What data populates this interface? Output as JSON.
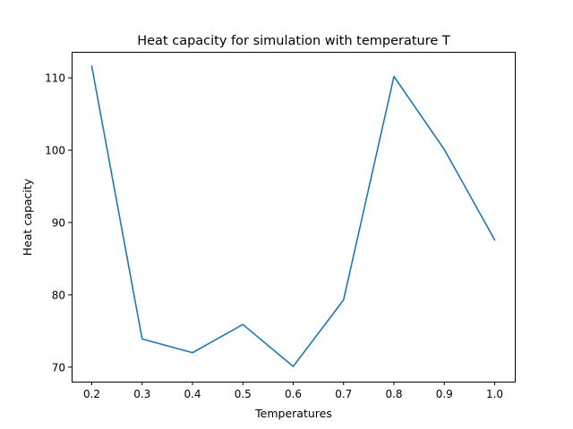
{
  "chart_data": {
    "type": "line",
    "title": "Heat capacity for simulation with temperature T",
    "xlabel": "Temperatures",
    "ylabel": "Heat capacity",
    "x": [
      0.2,
      0.3,
      0.4,
      0.5,
      0.6,
      0.7,
      0.8,
      0.9,
      1.0
    ],
    "series": [
      {
        "color": "#1f77b4",
        "values": [
          111.6,
          73.9,
          72.0,
          75.9,
          70.1,
          79.3,
          110.2,
          100.1,
          87.6
        ]
      }
    ],
    "xlim": [
      0.16,
      1.04
    ],
    "ylim": [
      68.0,
      113.6
    ],
    "xticks": [
      0.2,
      0.3,
      0.4,
      0.5,
      0.6,
      0.7,
      0.8,
      0.9,
      1.0
    ],
    "xtick_labels": [
      "0.2",
      "0.3",
      "0.4",
      "0.5",
      "0.6",
      "0.7",
      "0.8",
      "0.9",
      "1.0"
    ],
    "yticks": [
      70,
      80,
      90,
      100,
      110
    ],
    "ytick_labels": [
      "70",
      "80",
      "90",
      "100",
      "110"
    ],
    "grid": false,
    "legend": "none"
  }
}
